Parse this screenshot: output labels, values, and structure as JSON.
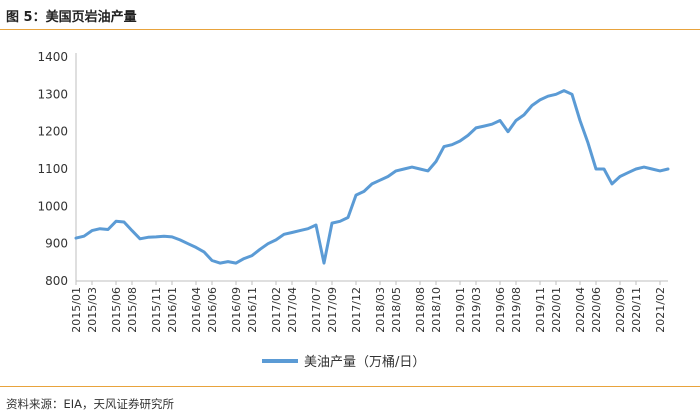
{
  "figure": {
    "title": "图 5：美国页岩油产量",
    "source": "资料来源：EIA，天风证券研究所"
  },
  "colors": {
    "series": "#5b9bd5",
    "rule": "#e8a33d",
    "axis": "#bfbfbf"
  },
  "chart_data": {
    "type": "line",
    "title": "",
    "xlabel": "",
    "ylabel": "",
    "ylim": [
      800,
      1400
    ],
    "yticks": [
      800,
      900,
      1000,
      1100,
      1200,
      1300,
      1400
    ],
    "grid": false,
    "legend": "bottom-center",
    "xlim": [
      "2015-01",
      "2021-03"
    ],
    "xticks": [
      "2015/01",
      "2015/03",
      "2015/06",
      "2015/08",
      "2015/11",
      "2016/01",
      "2016/04",
      "2016/06",
      "2016/09",
      "2016/11",
      "2017/02",
      "2017/04",
      "2017/07",
      "2017/09",
      "2017/12",
      "2018/03",
      "2018/05",
      "2018/08",
      "2018/10",
      "2019/01",
      "2019/03",
      "2019/06",
      "2019/08",
      "2019/11",
      "2020/01",
      "2020/04",
      "2020/06",
      "2020/09",
      "2020/11",
      "2021/02"
    ],
    "series": [
      {
        "name": "美油产量（万桶/日）",
        "x": [
          "2015-01",
          "2015-02",
          "2015-03",
          "2015-04",
          "2015-05",
          "2015-06",
          "2015-07",
          "2015-08",
          "2015-09",
          "2015-10",
          "2015-11",
          "2015-12",
          "2016-01",
          "2016-02",
          "2016-03",
          "2016-04",
          "2016-05",
          "2016-06",
          "2016-07",
          "2016-08",
          "2016-09",
          "2016-10",
          "2016-11",
          "2016-12",
          "2017-01",
          "2017-02",
          "2017-03",
          "2017-04",
          "2017-05",
          "2017-06",
          "2017-07",
          "2017-08",
          "2017-09",
          "2017-10",
          "2017-11",
          "2017-12",
          "2018-01",
          "2018-02",
          "2018-03",
          "2018-04",
          "2018-05",
          "2018-06",
          "2018-07",
          "2018-08",
          "2018-09",
          "2018-10",
          "2018-11",
          "2018-12",
          "2019-01",
          "2019-02",
          "2019-03",
          "2019-04",
          "2019-05",
          "2019-06",
          "2019-07",
          "2019-08",
          "2019-09",
          "2019-10",
          "2019-11",
          "2019-12",
          "2020-01",
          "2020-02",
          "2020-03",
          "2020-04",
          "2020-05",
          "2020-06",
          "2020-07",
          "2020-08",
          "2020-09",
          "2020-10",
          "2020-11",
          "2020-12",
          "2021-01",
          "2021-02",
          "2021-03"
        ],
        "values": [
          915,
          920,
          935,
          940,
          938,
          960,
          958,
          935,
          913,
          917,
          918,
          920,
          918,
          910,
          900,
          890,
          878,
          855,
          848,
          852,
          848,
          860,
          868,
          885,
          900,
          910,
          925,
          930,
          935,
          940,
          950,
          848,
          955,
          960,
          970,
          1030,
          1040,
          1060,
          1070,
          1080,
          1095,
          1100,
          1105,
          1100,
          1095,
          1120,
          1160,
          1165,
          1175,
          1190,
          1210,
          1215,
          1220,
          1230,
          1200,
          1230,
          1245,
          1270,
          1285,
          1295,
          1300,
          1310,
          1300,
          1230,
          1170,
          1100,
          1100,
          1060,
          1080,
          1090,
          1100,
          1105,
          1100,
          1095,
          1100
        ]
      }
    ]
  },
  "legend": {
    "label": "美油产量（万桶/日）"
  }
}
